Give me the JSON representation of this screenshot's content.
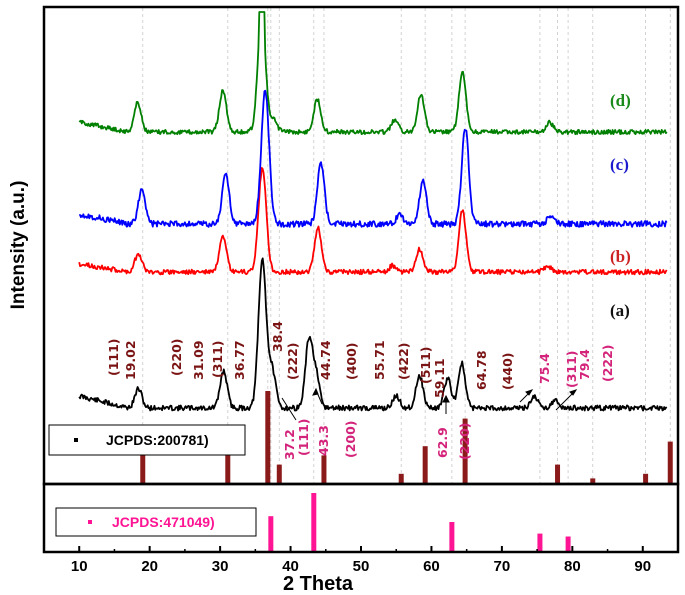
{
  "chart_data": {
    "type": "line",
    "xlabel": "2 Theta",
    "ylabel": "Intensity (a.u.)",
    "xlim": [
      5,
      95
    ],
    "x_ticks": [
      10,
      20,
      30,
      40,
      50,
      60,
      70,
      80,
      90
    ],
    "grid": "vertical dashed lines at reference peaks",
    "series": [
      {
        "name": "(a)",
        "color": "#000000",
        "peaks": [
          [
            18.4,
            0.13
          ],
          [
            30.5,
            0.25
          ],
          [
            36.0,
            1.0
          ],
          [
            37.4,
            0.25
          ],
          [
            42.6,
            0.45
          ],
          [
            43.6,
            0.22
          ],
          [
            55.0,
            0.08
          ],
          [
            58.3,
            0.22
          ],
          [
            62.3,
            0.2
          ],
          [
            64.3,
            0.3
          ],
          [
            74.6,
            0.08
          ],
          [
            77.5,
            0.05
          ]
        ]
      },
      {
        "name": "(b)",
        "color": "#ff0000",
        "peaks": [
          [
            18.4,
            0.18
          ],
          [
            30.4,
            0.33
          ],
          [
            36.0,
            1.0
          ],
          [
            43.9,
            0.42
          ],
          [
            54.5,
            0.06
          ],
          [
            58.3,
            0.22
          ],
          [
            64.4,
            0.6
          ],
          [
            76.5,
            0.06
          ]
        ]
      },
      {
        "name": "(c)",
        "color": "#0000ff",
        "peaks": [
          [
            18.9,
            0.26
          ],
          [
            30.8,
            0.37
          ],
          [
            36.4,
            1.0
          ],
          [
            44.3,
            0.45
          ],
          [
            55.5,
            0.07
          ],
          [
            58.8,
            0.32
          ],
          [
            64.8,
            0.72
          ],
          [
            77.0,
            0.07
          ]
        ]
      },
      {
        "name": "(d)",
        "color": "#008000",
        "peaks": [
          [
            18.3,
            0.25
          ],
          [
            30.4,
            0.35
          ],
          [
            35.9,
            1.0
          ],
          [
            37.6,
            0.1
          ],
          [
            43.8,
            0.28
          ],
          [
            54.8,
            0.1
          ],
          [
            58.5,
            0.32
          ],
          [
            64.4,
            0.5
          ],
          [
            76.8,
            0.08
          ]
        ]
      }
    ],
    "reference_upper": {
      "label": "JCPDS:200781)",
      "color": "#8b1a1a",
      "lines": [
        [
          19.02,
          0.3
        ],
        [
          31.09,
          0.55
        ],
        [
          36.77,
          1.0
        ],
        [
          38.4,
          0.2
        ],
        [
          44.74,
          0.3
        ],
        [
          55.71,
          0.1
        ],
        [
          59.11,
          0.4
        ],
        [
          64.78,
          0.7
        ],
        [
          77.9,
          0.2
        ],
        [
          82.9,
          0.05
        ],
        [
          90.4,
          0.1
        ],
        [
          93.9,
          0.45
        ]
      ]
    },
    "reference_lower": {
      "label": "JCPDS:471049)",
      "color": "#ff1493",
      "lines": [
        [
          37.2,
          0.6
        ],
        [
          43.3,
          1.0
        ],
        [
          62.9,
          0.5
        ],
        [
          75.4,
          0.3
        ],
        [
          79.4,
          0.25
        ]
      ]
    },
    "annotations_upper_phase": {
      "color": "#7a1414",
      "items": [
        {
          "hkl": "(111)",
          "value": "19.02"
        },
        {
          "hkl": "(220)",
          "value": "31.09"
        },
        {
          "hkl": "(311)",
          "value": "36.77"
        },
        {
          "hkl": "(222)",
          "value": "38.4"
        },
        {
          "hkl": "(400)",
          "value": "44.74"
        },
        {
          "hkl": "(422)",
          "value": "55.71"
        },
        {
          "hkl": "(511)",
          "value": "59.11"
        },
        {
          "hkl": "(440)",
          "value": "64.78"
        }
      ]
    },
    "annotations_lower_phase": {
      "color": "#d4237a",
      "items": [
        {
          "hkl": "(111)",
          "value": "37.2"
        },
        {
          "hkl": "(200)",
          "value": "43.3"
        },
        {
          "hkl": "(220)",
          "value": "62.9"
        },
        {
          "hkl": "(311)",
          "value": "75.4"
        },
        {
          "hkl": "(222)",
          "value": "79.4"
        }
      ]
    }
  }
}
